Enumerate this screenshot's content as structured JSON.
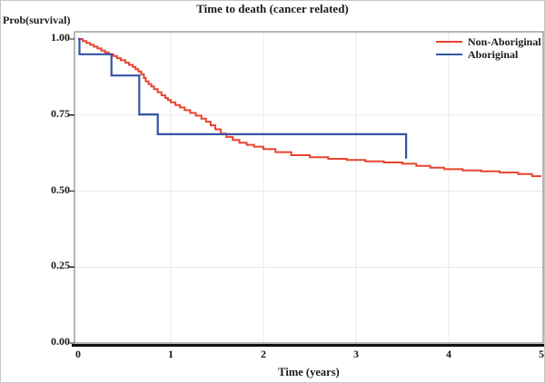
{
  "figure": {
    "background": "#ffffff",
    "outer_border_color": "#c6c6c6",
    "frame_color": "#6f6f6f",
    "baseline_color": "#111111",
    "grid_color": "#e8e8e8",
    "text_color": "#1a1a1a"
  },
  "chart_data": {
    "type": "line",
    "subtype": "kaplan-meier-step-curve",
    "title": "Time to death (cancer related)",
    "xlabel": "Time (years)",
    "ylabel": "Prob(survival)",
    "xlim": [
      0,
      5
    ],
    "ylim": [
      0.0,
      1.0
    ],
    "x_ticks": [
      {
        "v": 0,
        "label": "0"
      },
      {
        "v": 1,
        "label": "1"
      },
      {
        "v": 2,
        "label": "2"
      },
      {
        "v": 3,
        "label": "3"
      },
      {
        "v": 4,
        "label": "4"
      },
      {
        "v": 5,
        "label": "5"
      }
    ],
    "y_ticks": [
      {
        "v": 1.0,
        "label": "1.00"
      },
      {
        "v": 0.75,
        "label": "0.75"
      },
      {
        "v": 0.5,
        "label": "0.50"
      },
      {
        "v": 0.25,
        "label": "0.25"
      },
      {
        "v": 0.0,
        "label": "0.00"
      }
    ],
    "grid": {
      "vertical_at": [
        1,
        2,
        3,
        4
      ],
      "horizontal_at": [
        0.25,
        0.5,
        0.75
      ],
      "on": true
    },
    "legend": {
      "position": "top-right",
      "entries": [
        {
          "label": "Non-Aboriginal",
          "color": "#e8432f"
        },
        {
          "label": "Aboriginal",
          "color": "#3353a4"
        }
      ]
    },
    "series": [
      {
        "name": "Non-Aboriginal",
        "color": "#e8432f",
        "stroke_width": 2,
        "step": "after",
        "points": [
          [
            0.0,
            1.0
          ],
          [
            0.05,
            0.993
          ],
          [
            0.09,
            0.987
          ],
          [
            0.13,
            0.981
          ],
          [
            0.17,
            0.975
          ],
          [
            0.21,
            0.969
          ],
          [
            0.25,
            0.962
          ],
          [
            0.29,
            0.956
          ],
          [
            0.33,
            0.95
          ],
          [
            0.38,
            0.944
          ],
          [
            0.42,
            0.937
          ],
          [
            0.46,
            0.93
          ],
          [
            0.51,
            0.922
          ],
          [
            0.55,
            0.915
          ],
          [
            0.59,
            0.908
          ],
          [
            0.62,
            0.901
          ],
          [
            0.65,
            0.893
          ],
          [
            0.68,
            0.884
          ],
          [
            0.71,
            0.872
          ],
          [
            0.73,
            0.861
          ],
          [
            0.76,
            0.852
          ],
          [
            0.79,
            0.844
          ],
          [
            0.82,
            0.835
          ],
          [
            0.86,
            0.825
          ],
          [
            0.9,
            0.815
          ],
          [
            0.94,
            0.806
          ],
          [
            0.97,
            0.799
          ],
          [
            1.0,
            0.792
          ],
          [
            1.05,
            0.783
          ],
          [
            1.1,
            0.775
          ],
          [
            1.15,
            0.766
          ],
          [
            1.21,
            0.757
          ],
          [
            1.27,
            0.748
          ],
          [
            1.33,
            0.738
          ],
          [
            1.38,
            0.728
          ],
          [
            1.43,
            0.716
          ],
          [
            1.48,
            0.703
          ],
          [
            1.54,
            0.689
          ],
          [
            1.6,
            0.678
          ],
          [
            1.67,
            0.668
          ],
          [
            1.74,
            0.659
          ],
          [
            1.82,
            0.652
          ],
          [
            1.9,
            0.646
          ],
          [
            2.0,
            0.638
          ],
          [
            2.13,
            0.628
          ],
          [
            2.3,
            0.618
          ],
          [
            2.5,
            0.611
          ],
          [
            2.7,
            0.606
          ],
          [
            2.9,
            0.602
          ],
          [
            3.1,
            0.598
          ],
          [
            3.3,
            0.594
          ],
          [
            3.5,
            0.59
          ],
          [
            3.65,
            0.583
          ],
          [
            3.8,
            0.577
          ],
          [
            3.95,
            0.572
          ],
          [
            4.15,
            0.568
          ],
          [
            4.35,
            0.565
          ],
          [
            4.55,
            0.561
          ],
          [
            4.75,
            0.556
          ],
          [
            4.9,
            0.549
          ],
          [
            5.0,
            0.549
          ]
        ]
      },
      {
        "name": "Aboriginal",
        "color": "#3353a4",
        "stroke_width": 2.2,
        "step": "after",
        "points": [
          [
            0.0,
            1.0
          ],
          [
            0.015,
            0.95
          ],
          [
            0.36,
            0.88
          ],
          [
            0.66,
            0.752
          ],
          [
            0.86,
            0.687
          ],
          [
            3.54,
            0.607
          ]
        ]
      }
    ]
  }
}
